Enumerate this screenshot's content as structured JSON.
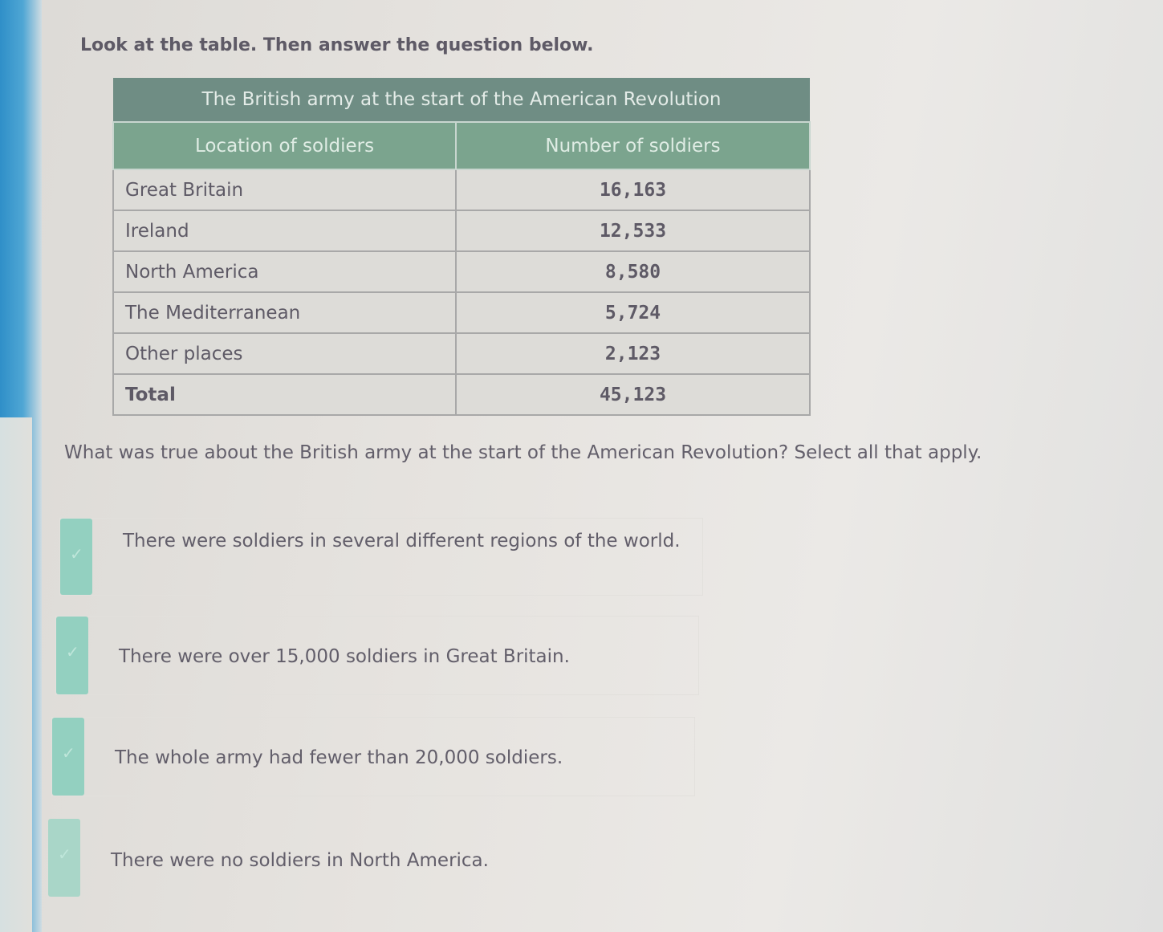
{
  "instruction": "Look at the table. Then answer the question below.",
  "table": {
    "title": "The British army at the start of the American Revolution",
    "headers": [
      "Location of soldiers",
      "Number of soldiers"
    ],
    "rows": [
      {
        "location": "Great Britain",
        "number": "16,163"
      },
      {
        "location": "Ireland",
        "number": "12,533"
      },
      {
        "location": "North America",
        "number": "8,580"
      },
      {
        "location": "The Mediterranean",
        "number": "5,724"
      },
      {
        "location": "Other places",
        "number": "2,123"
      },
      {
        "location": "Total",
        "number": "45,123"
      }
    ]
  },
  "question": "What was true about the British army at the start of the American Revolution? Select all that apply.",
  "options": [
    {
      "text": "There were soldiers in several different regions of the world."
    },
    {
      "text": "There were over 15,000 soldiers in Great Britain."
    },
    {
      "text": "The whole army had fewer than 20,000 soldiers."
    },
    {
      "text": "There were no soldiers in North America."
    }
  ],
  "colors": {
    "checkbox": "#93d0c0",
    "title_row": "#6f8d84",
    "header_row": "#7ba48e"
  },
  "icons": {
    "checkbox": "checkmark-icon"
  }
}
